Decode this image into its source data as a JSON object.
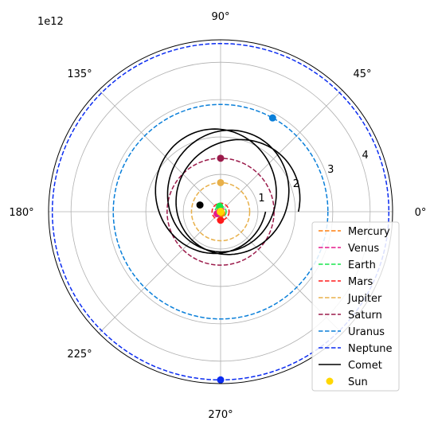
{
  "chart_data": {
    "type": "polar",
    "offset_label": "1e12",
    "theta_ticks": [
      {
        "deg": 0,
        "label": "0°"
      },
      {
        "deg": 45,
        "label": "45°"
      },
      {
        "deg": 90,
        "label": "90°"
      },
      {
        "deg": 135,
        "label": "135°"
      },
      {
        "deg": 180,
        "label": "180°"
      },
      {
        "deg": 225,
        "label": "225°"
      },
      {
        "deg": 270,
        "label": "270°"
      }
    ],
    "r_ticks": [
      {
        "value": 1,
        "label": "1"
      },
      {
        "value": 2,
        "label": "2"
      },
      {
        "value": 3,
        "label": "3"
      },
      {
        "value": 4,
        "label": "4"
      }
    ],
    "r_max": 4.6,
    "r_label_angle_deg": 22.5,
    "grid": true,
    "legend_position": "lower-right",
    "planets": [
      {
        "name": "Mercury",
        "color": "#ff7f0e",
        "style": "dashed",
        "radius": 0.058,
        "marker_deg": 300,
        "marker_r": 0.058
      },
      {
        "name": "Venus",
        "color": "#e6198c",
        "style": "dashed",
        "radius": 0.108,
        "marker_deg": 210,
        "marker_r": 0.108
      },
      {
        "name": "Earth",
        "color": "#19e64d",
        "style": "dashed",
        "radius": 0.15,
        "marker_deg": 100,
        "marker_r": 0.15
      },
      {
        "name": "Mars",
        "color": "#ff1a1a",
        "style": "dashed",
        "radius": 0.228,
        "marker_deg": 270,
        "marker_r": 0.228
      },
      {
        "name": "Jupiter",
        "color": "#e8b04a",
        "style": "dashed",
        "radius": 0.778,
        "marker_deg": 90,
        "marker_r": 0.778
      },
      {
        "name": "Saturn",
        "color": "#9b1a4a",
        "style": "dashed",
        "radius": 1.43,
        "marker_deg": 90,
        "marker_r": 1.43
      },
      {
        "name": "Uranus",
        "color": "#0a7fd9",
        "style": "dashed",
        "radius": 2.87,
        "marker_deg": 61,
        "marker_r": 2.87
      },
      {
        "name": "Neptune",
        "color": "#0a2bf0",
        "style": "dashed",
        "radius": 4.5,
        "marker_deg": 270,
        "marker_r": 4.5
      }
    ],
    "comet": {
      "name": "Comet",
      "color": "#000000",
      "style": "solid",
      "semi_latus": 1.45,
      "eccentricity": 0.35,
      "rotations": 3,
      "orient_start_deg": 210,
      "orient_step_deg": 32,
      "marker_deg": 162,
      "marker_r": 0.58
    },
    "sun": {
      "name": "Sun",
      "color": "#ffd700",
      "r": 0
    }
  }
}
